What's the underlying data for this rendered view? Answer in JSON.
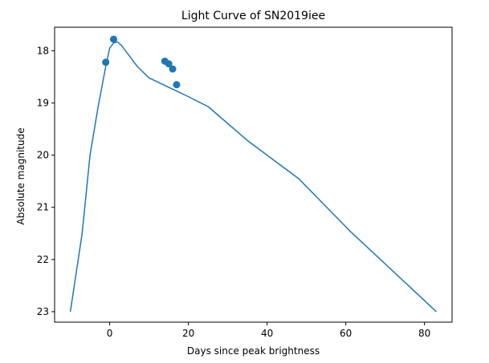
{
  "chart_data": {
    "type": "line",
    "title": "Light Curve of SN2019iee",
    "xlabel": "Days since peak brightness",
    "ylabel": "Absolute magnitude",
    "xlim": [
      -14,
      87
    ],
    "ylim": [
      23.2,
      17.55
    ],
    "y_inverted": true,
    "grid": false,
    "xticks": [
      0,
      20,
      40,
      60,
      80
    ],
    "yticks": [
      18,
      19,
      20,
      21,
      22,
      23
    ],
    "color": "#1f77b4",
    "series": [
      {
        "kind": "line",
        "x": [
          -10,
          -7,
          -5,
          -3,
          -2,
          -1,
          0,
          1,
          2,
          3,
          5,
          7,
          10,
          15,
          20,
          25,
          35,
          48,
          61,
          83
        ],
        "y": [
          23.0,
          21.5,
          20.0,
          19.1,
          18.7,
          18.3,
          17.95,
          17.85,
          17.83,
          17.9,
          18.1,
          18.3,
          18.52,
          18.7,
          18.88,
          19.07,
          19.72,
          20.45,
          21.45,
          23.0
        ]
      },
      {
        "kind": "scatter",
        "x": [
          -1,
          1,
          14,
          15,
          16,
          17
        ],
        "y": [
          18.22,
          17.78,
          18.2,
          18.25,
          18.35,
          18.65
        ]
      }
    ]
  }
}
